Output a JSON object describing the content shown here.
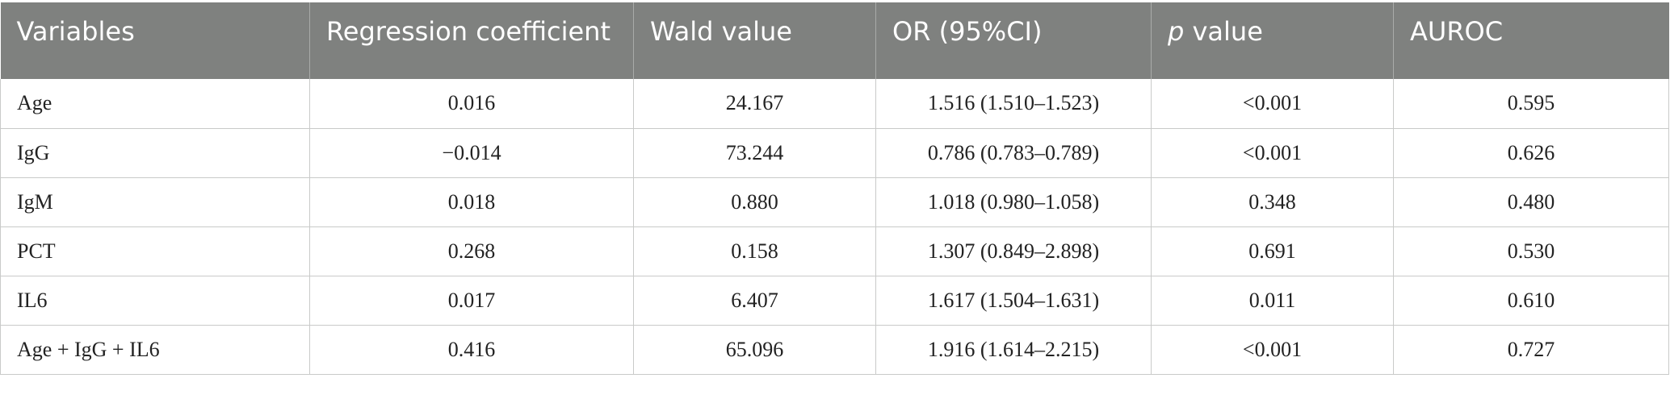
{
  "table": {
    "headers": [
      {
        "text": "Variables",
        "italic_prefix": ""
      },
      {
        "text": "Regression coefficient",
        "italic_prefix": ""
      },
      {
        "text": "Wald value",
        "italic_prefix": ""
      },
      {
        "text": "OR (95%CI)",
        "italic_prefix": ""
      },
      {
        "text": " value",
        "italic_prefix": "p"
      },
      {
        "text": "AUROC",
        "italic_prefix": ""
      }
    ],
    "rows": [
      [
        "Age",
        "0.016",
        "24.167",
        "1.516 (1.510–1.523)",
        "<0.001",
        "0.595"
      ],
      [
        "IgG",
        "−0.014",
        "73.244",
        "0.786 (0.783–0.789)",
        "<0.001",
        "0.626"
      ],
      [
        "IgM",
        "0.018",
        "0.880",
        "1.018 (0.980–1.058)",
        "0.348",
        "0.480"
      ],
      [
        "PCT",
        "0.268",
        "0.158",
        "1.307 (0.849–2.898)",
        "0.691",
        "0.530"
      ],
      [
        "IL6",
        "0.017",
        "6.407",
        "1.617 (1.504–1.631)",
        "0.011",
        "0.610"
      ],
      [
        "Age + IgG + IL6",
        "0.416",
        "65.096",
        "1.916 (1.614–2.215)",
        "<0.001",
        "0.727"
      ]
    ]
  }
}
